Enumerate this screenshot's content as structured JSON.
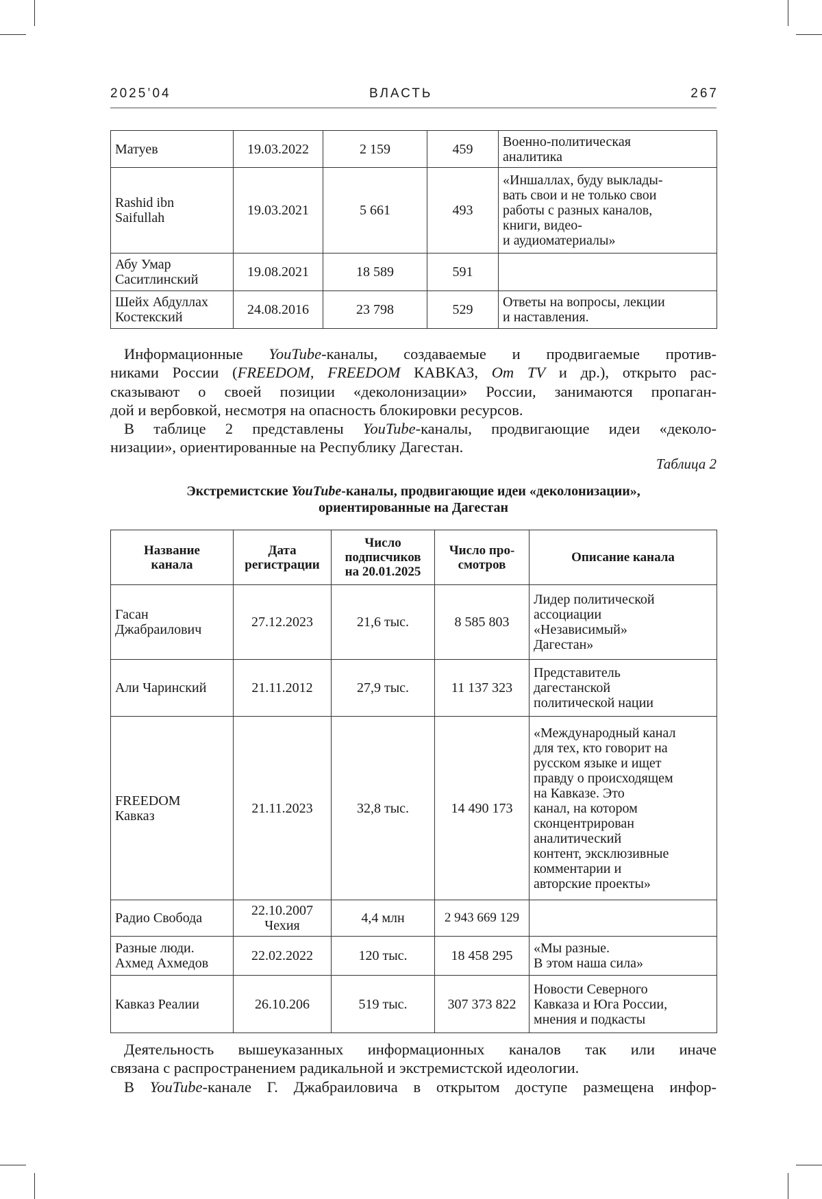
{
  "header": {
    "issue": "2025’04",
    "journal": "ВЛАСТЬ",
    "page": "267"
  },
  "table1": {
    "rows": [
      {
        "name": "Матуев",
        "date": "19.03.2022",
        "subscribers": "2 159",
        "views": "459",
        "description": "Военно-политическая\nаналитика"
      },
      {
        "name": "Rashid ibn\nSaifullah",
        "date": "19.03.2021",
        "subscribers": "5 661",
        "views": "493",
        "description": "«Иншаллах, буду выклады-\nвать свои и не только свои\nработы с разных каналов,\nкниги, видео-\nи аудиоматериалы»"
      },
      {
        "name": "Абу Умар\nСаситлинский",
        "date": "19.08.2021",
        "subscribers": "18 589",
        "views": "591",
        "description": ""
      },
      {
        "name": "Шейх Абдуллах\nКостекский",
        "date": "24.08.2016",
        "subscribers": "23 798",
        "views": "529",
        "description": "Ответы на вопросы, лекции\nи наставления."
      }
    ]
  },
  "para1": {
    "l1a": "Информационные ",
    "l1b": "YouTube",
    "l1c": "-каналы, создаваемые и продвигаемые против-",
    "l2a": "никами России (",
    "l2b": "FREEDOM",
    "l2c": ", ",
    "l2d": "FREEDOM",
    "l2e": " КАВКАЗ, ",
    "l2f": "Om TV",
    "l2g": " и др.), открыто рас-",
    "l3": "сказывают о своей позиции «деколонизации» России, занимаются пропаган-",
    "l4": "дой и вербовкой, несмотря на опасность блокировки ресурсов."
  },
  "para2": {
    "l1a": "В таблице 2 представлены ",
    "l1b": "YouTube",
    "l1c": "-каналы, продвигающие идеи «деколо-",
    "l2": "низации», ориентированные на Республику Дагестан."
  },
  "table2": {
    "label": "Таблица 2",
    "title_a": "Экстремистские ",
    "title_b": "YouTube",
    "title_c": "-каналы, продвигающие идеи «деколонизации»,",
    "title_d": "ориентированные на Дагестан",
    "columns": [
      "Название\nканала",
      "Дата\nрегистрации",
      "Число\nподписчиков\nна 20.01.2025",
      "Число про-\nсмотров",
      "Описание канала"
    ],
    "rows": [
      {
        "name": "Гасан\nДжабраилович",
        "date": "27.12.2023",
        "subscribers": "21,6 тыс.",
        "views": "8 585 803",
        "description": "Лидер политической\nассоциации\n«Независимый»\nДагестан»"
      },
      {
        "name": "Али Чаринский",
        "date": "21.11.2012",
        "subscribers": "27,9 тыс.",
        "views": "11 137 323",
        "description": "Представитель\nдагестанской\nполитической нации"
      },
      {
        "name": "FREEDOM\nКавказ",
        "date": "21.11.2023",
        "subscribers": "32,8 тыс.",
        "views": "14 490 173",
        "description": "«Международный канал\nдля тех, кто говорит на\nрусском языке и ищет\nправду о происходящем\nна Кавказе. Это\nканал, на котором\nсконцентрирован\nаналитический\nконтент, эксклюзивные\nкомментарии и\nавторские проекты»"
      },
      {
        "name": "Радио Свобода",
        "date": "22.10.2007\nЧехия",
        "subscribers": "4,4 млн",
        "views": "2 943 669 129",
        "description": ""
      },
      {
        "name": "Разные люди.\nАхмед Ахмедов",
        "date": "22.02.2022",
        "subscribers": "120 тыс.",
        "views": "18 458 295",
        "description": "«Мы разные.\nВ этом наша сила»"
      },
      {
        "name": "Кавказ Реалии",
        "date": "26.10.206",
        "subscribers": "519 тыс.",
        "views": "307 373 822",
        "description": "Новости Северного\nКавказа и Юга России,\nмнения и подкасты"
      }
    ]
  },
  "para3": {
    "l1": "Деятельность вышеуказанных информационных каналов так или иначе",
    "l2": "связана с распространением радикальной и экстремистской идеологии."
  },
  "para4": {
    "l1a": "В ",
    "l1b": "YouTube",
    "l1c": "-канале Г. Джабраиловича в открытом доступе размещена инфор-"
  }
}
